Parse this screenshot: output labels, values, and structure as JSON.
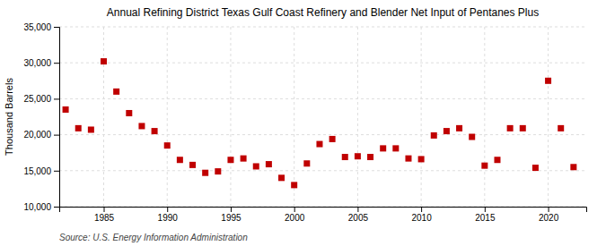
{
  "chart_data": {
    "type": "scatter",
    "title": "Annual Refining District Texas Gulf Coast Refinery and Blender Net Input of Pentanes Plus",
    "ylabel": "Thousand Barrels",
    "source": "Source: U.S. Energy Information Administration",
    "x": [
      1982,
      1983,
      1984,
      1985,
      1986,
      1987,
      1988,
      1989,
      1990,
      1991,
      1992,
      1993,
      1994,
      1995,
      1996,
      1997,
      1998,
      1999,
      2000,
      2001,
      2002,
      2003,
      2004,
      2005,
      2006,
      2007,
      2008,
      2009,
      2010,
      2011,
      2012,
      2013,
      2014,
      2015,
      2016,
      2017,
      2018,
      2019,
      2020,
      2021,
      2022
    ],
    "values": [
      23500,
      20900,
      20700,
      30200,
      26000,
      23000,
      21200,
      20500,
      18500,
      16500,
      15800,
      14700,
      14900,
      16500,
      16700,
      15600,
      15900,
      14000,
      13000,
      16000,
      18700,
      19400,
      16900,
      17000,
      16900,
      18100,
      18100,
      16700,
      16600,
      19900,
      20500,
      20900,
      19700,
      15700,
      16500,
      20900,
      20900,
      15400,
      27500,
      20900,
      15500
    ],
    "color": "#c00000",
    "marker": "square",
    "xlim": [
      1981.5,
      2023
    ],
    "xticks": [
      1985,
      1990,
      1995,
      2000,
      2005,
      2010,
      2015,
      2020
    ],
    "ylim": [
      10000,
      35000
    ],
    "yticks": [
      {
        "value": 10000,
        "label": "10,000"
      },
      {
        "value": 15000,
        "label": "15,000"
      },
      {
        "value": 20000,
        "label": "20,000"
      },
      {
        "value": 25000,
        "label": "25,000"
      },
      {
        "value": 30000,
        "label": "30,000"
      },
      {
        "value": 35000,
        "label": "35,000"
      }
    ],
    "grid": true
  }
}
